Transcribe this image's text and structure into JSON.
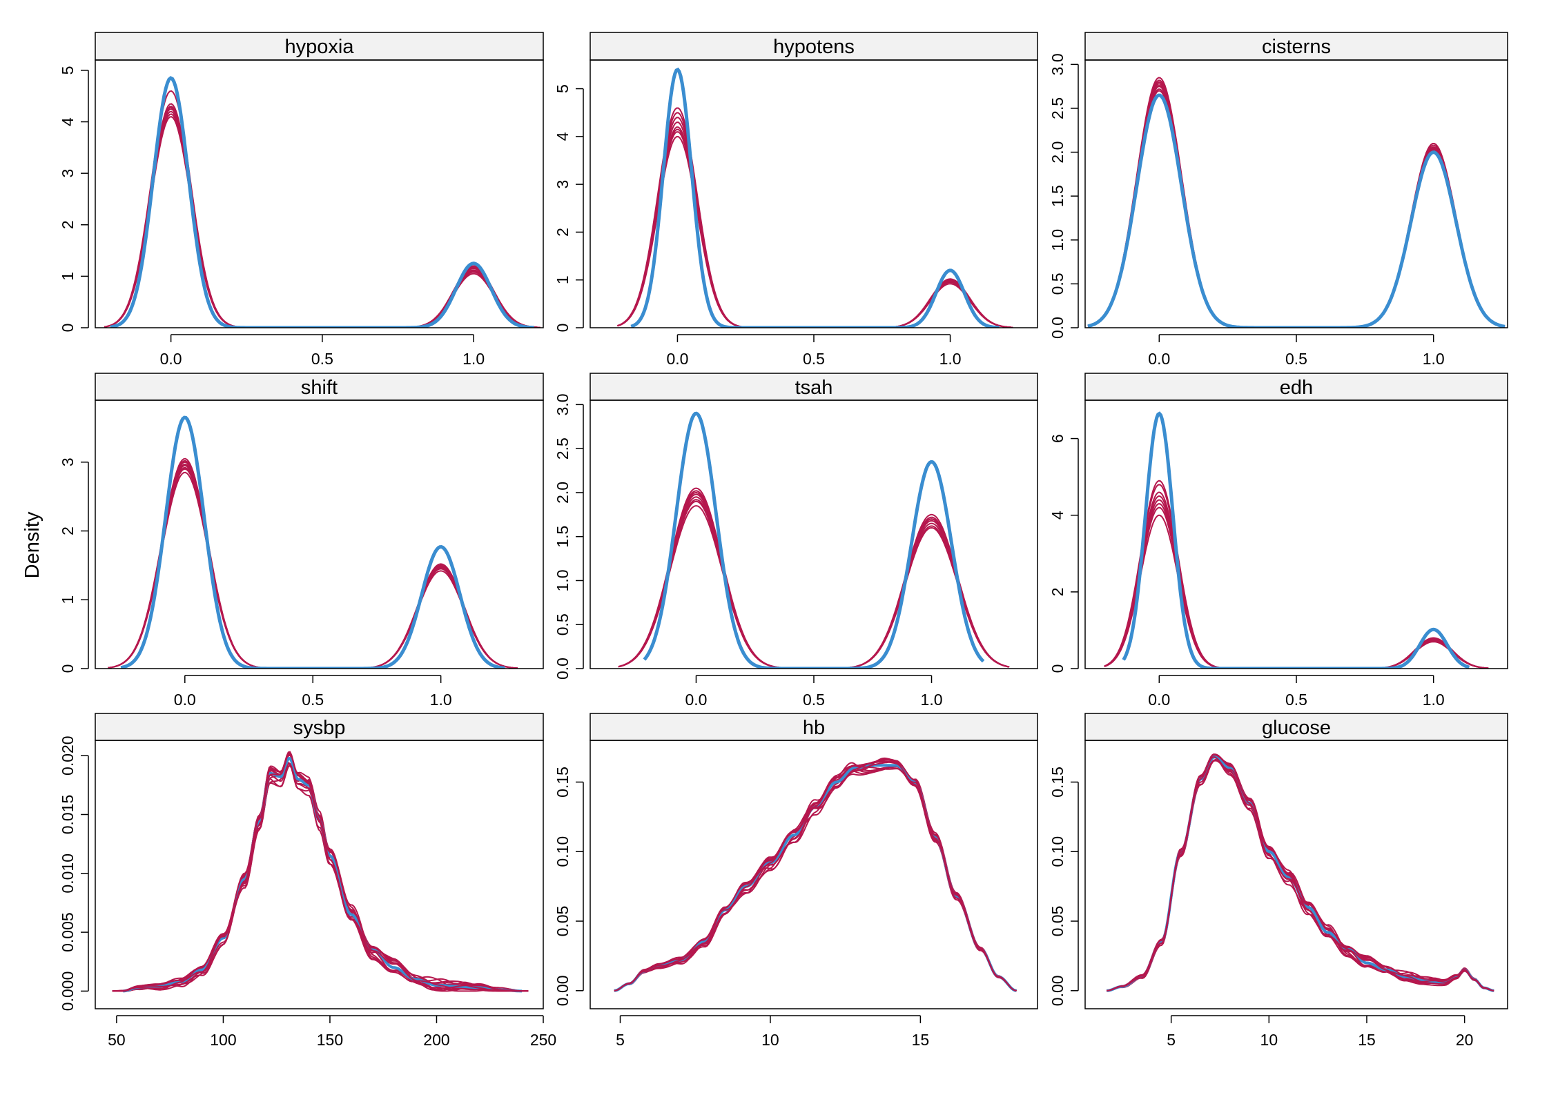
{
  "ylabel": "Density",
  "colors": {
    "observed": "#3a8dd0",
    "imputed": "#b5174d",
    "strip": "#f2f2f2"
  },
  "chart_data": [
    {
      "type": "line",
      "title": "hypoxia",
      "kind": "binary",
      "xlim": [
        -0.25,
        1.23
      ],
      "ylim": [
        0,
        5.2
      ],
      "xticks": [
        {
          "v": 0.0,
          "label": "0.0"
        },
        {
          "v": 0.5,
          "label": "0.5"
        },
        {
          "v": 1.0,
          "label": "1.0"
        }
      ],
      "yticks": [
        {
          "v": 0,
          "label": "0"
        },
        {
          "v": 1,
          "label": "1"
        },
        {
          "v": 2,
          "label": "2"
        },
        {
          "v": 3,
          "label": "3"
        },
        {
          "v": 4,
          "label": "4"
        },
        {
          "v": 5,
          "label": "5"
        }
      ],
      "observed": {
        "p0": 4.85,
        "p1": 1.25,
        "sd": 0.058,
        "range": [
          -0.2,
          1.2
        ]
      },
      "imputed": {
        "p0": [
          4.1,
          4.2,
          4.25,
          4.3,
          4.35,
          4.6,
          4.15,
          4.28
        ],
        "p1": [
          1.05,
          1.1,
          1.15,
          1.2,
          1.18,
          1.08,
          1.12,
          1.16
        ],
        "sd": 0.066,
        "range": [
          -0.22,
          1.22
        ]
      }
    },
    {
      "type": "line",
      "title": "hypotens",
      "kind": "binary",
      "xlim": [
        -0.32,
        1.32
      ],
      "ylim": [
        0,
        5.6
      ],
      "xticks": [
        {
          "v": 0.0,
          "label": "0.0"
        },
        {
          "v": 0.5,
          "label": "0.5"
        },
        {
          "v": 1.0,
          "label": "1.0"
        }
      ],
      "yticks": [
        {
          "v": 0,
          "label": "0"
        },
        {
          "v": 1,
          "label": "1"
        },
        {
          "v": 2,
          "label": "2"
        },
        {
          "v": 3,
          "label": "3"
        },
        {
          "v": 4,
          "label": "4"
        },
        {
          "v": 5,
          "label": "5"
        }
      ],
      "observed": {
        "p0": 5.4,
        "p1": 1.2,
        "sd": 0.052,
        "range": [
          -0.17,
          1.18
        ]
      },
      "imputed": {
        "p0": [
          4.0,
          4.1,
          4.2,
          4.3,
          4.4,
          4.5,
          4.6,
          4.15
        ],
        "p1": [
          0.92,
          0.95,
          0.98,
          1.0,
          1.02,
          0.96,
          0.99,
          1.01
        ],
        "sd": 0.072,
        "range": [
          -0.22,
          1.23
        ]
      }
    },
    {
      "type": "line",
      "title": "cisterns",
      "kind": "binary",
      "xlim": [
        -0.27,
        1.27
      ],
      "ylim": [
        0,
        3.05
      ],
      "xticks": [
        {
          "v": 0.0,
          "label": "0.0"
        },
        {
          "v": 0.5,
          "label": "0.5"
        },
        {
          "v": 1.0,
          "label": "1.0"
        }
      ],
      "yticks": [
        {
          "v": 0,
          "label": "0.0"
        },
        {
          "v": 0.5,
          "label": "0.5"
        },
        {
          "v": 1.0,
          "label": "1.0"
        },
        {
          "v": 1.5,
          "label": "1.5"
        },
        {
          "v": 2.0,
          "label": "2.0"
        },
        {
          "v": 2.5,
          "label": "2.5"
        },
        {
          "v": 3.0,
          "label": "3.0"
        }
      ],
      "observed": {
        "p0": 2.65,
        "p1": 2.0,
        "sd": 0.082,
        "range": [
          -0.26,
          1.26
        ]
      },
      "imputed": {
        "p0": [
          2.7,
          2.75,
          2.78,
          2.8,
          2.85,
          2.72,
          2.76,
          2.82
        ],
        "p1": [
          2.0,
          2.02,
          2.05,
          2.08,
          2.1,
          2.03,
          2.06,
          2.04
        ],
        "sd": 0.082,
        "range": [
          -0.26,
          1.26
        ]
      }
    },
    {
      "type": "line",
      "title": "shift",
      "kind": "binary",
      "xlim": [
        -0.35,
        1.4
      ],
      "ylim": [
        0,
        3.9
      ],
      "xticks": [
        {
          "v": 0.0,
          "label": "0.0"
        },
        {
          "v": 0.5,
          "label": "0.5"
        },
        {
          "v": 1.0,
          "label": "1.0"
        }
      ],
      "yticks": [
        {
          "v": 0,
          "label": "0"
        },
        {
          "v": 1,
          "label": "1"
        },
        {
          "v": 2,
          "label": "2"
        },
        {
          "v": 3,
          "label": "3"
        }
      ],
      "observed": {
        "p0": 3.65,
        "p1": 1.77,
        "sd": 0.075,
        "range": [
          -0.25,
          1.25
        ]
      },
      "imputed": {
        "p0": [
          2.85,
          2.9,
          2.95,
          3.0,
          3.05,
          2.92,
          2.97,
          3.02
        ],
        "p1": [
          1.42,
          1.45,
          1.48,
          1.5,
          1.52,
          1.46,
          1.49,
          1.47
        ],
        "sd": 0.09,
        "range": [
          -0.3,
          1.3
        ]
      }
    },
    {
      "type": "line",
      "title": "tsah",
      "kind": "binary",
      "xlim": [
        -0.45,
        1.45
      ],
      "ylim": [
        0,
        3.05
      ],
      "xticks": [
        {
          "v": 0.0,
          "label": "0.0"
        },
        {
          "v": 0.5,
          "label": "0.5"
        },
        {
          "v": 1.0,
          "label": "1.0"
        }
      ],
      "yticks": [
        {
          "v": 0,
          "label": "0.0"
        },
        {
          "v": 0.5,
          "label": "0.5"
        },
        {
          "v": 1.0,
          "label": "1.0"
        },
        {
          "v": 1.5,
          "label": "1.5"
        },
        {
          "v": 2.0,
          "label": "2.0"
        },
        {
          "v": 2.5,
          "label": "2.5"
        },
        {
          "v": 3.0,
          "label": "3.0"
        }
      ],
      "observed": {
        "p0": 2.9,
        "p1": 2.35,
        "sd": 0.085,
        "range": [
          -0.22,
          1.22
        ]
      },
      "imputed": {
        "p0": [
          1.85,
          1.9,
          1.95,
          2.0,
          2.05,
          1.92,
          1.98,
          2.02
        ],
        "p1": [
          1.6,
          1.65,
          1.7,
          1.72,
          1.75,
          1.68,
          1.62,
          1.7
        ],
        "sd": 0.11,
        "range": [
          -0.33,
          1.33
        ]
      }
    },
    {
      "type": "line",
      "title": "edh",
      "kind": "binary",
      "xlim": [
        -0.27,
        1.27
      ],
      "ylim": [
        0,
        7.0
      ],
      "xticks": [
        {
          "v": 0.0,
          "label": "0.0"
        },
        {
          "v": 0.5,
          "label": "0.5"
        },
        {
          "v": 1.0,
          "label": "1.0"
        }
      ],
      "yticks": [
        {
          "v": 0,
          "label": "0"
        },
        {
          "v": 2,
          "label": "2"
        },
        {
          "v": 4,
          "label": "4"
        },
        {
          "v": 6,
          "label": "6"
        }
      ],
      "observed": {
        "p0": 6.65,
        "p1": 1.02,
        "sd": 0.05,
        "range": [
          -0.13,
          1.13
        ]
      },
      "imputed": {
        "p0": [
          4.0,
          4.2,
          4.4,
          4.6,
          4.8,
          4.9,
          4.3,
          4.5
        ],
        "p1": [
          0.7,
          0.72,
          0.75,
          0.78,
          0.8,
          0.74,
          0.76,
          0.73
        ],
        "sd": 0.068,
        "range": [
          -0.2,
          1.2
        ]
      }
    },
    {
      "type": "line",
      "title": "sysbp",
      "kind": "continuous",
      "xlim": [
        40,
        250
      ],
      "ylim": [
        -0.0015,
        0.0213
      ],
      "xticks": [
        {
          "v": 50,
          "label": "50"
        },
        {
          "v": 100,
          "label": "100"
        },
        {
          "v": 150,
          "label": "150"
        },
        {
          "v": 200,
          "label": "200"
        },
        {
          "v": 250,
          "label": "250"
        }
      ],
      "yticks": [
        {
          "v": 0.0,
          "label": "0.000"
        },
        {
          "v": 0.005,
          "label": "0.005"
        },
        {
          "v": 0.01,
          "label": "0.010"
        },
        {
          "v": 0.015,
          "label": "0.015"
        },
        {
          "v": 0.02,
          "label": "0.020"
        }
      ],
      "observed": {
        "x": [
          53,
          60,
          70,
          80,
          90,
          100,
          110,
          117,
          122,
          127,
          131,
          135,
          140,
          145,
          150,
          160,
          170,
          180,
          190,
          200,
          210,
          220,
          230,
          240
        ],
        "y": [
          0.0,
          0.0003,
          0.0004,
          0.0008,
          0.0018,
          0.0045,
          0.0095,
          0.0145,
          0.0185,
          0.0182,
          0.0198,
          0.018,
          0.0175,
          0.0145,
          0.0115,
          0.0065,
          0.0035,
          0.002,
          0.001,
          0.0005,
          0.0004,
          0.0003,
          0.0001,
          0.0
        ]
      },
      "imputed": {
        "count": 9,
        "amp": 0.0006,
        "min": 48,
        "max": 243
      },
      "x_range": [
        48,
        243
      ]
    },
    {
      "type": "line",
      "title": "hb",
      "kind": "continuous",
      "xlim": [
        4.0,
        18.9
      ],
      "ylim": [
        -0.013,
        0.18
      ],
      "xticks": [
        {
          "v": 5,
          "label": "5"
        },
        {
          "v": 10,
          "label": "10"
        },
        {
          "v": 15,
          "label": "15"
        }
      ],
      "yticks": [
        {
          "v": 0.0,
          "label": "0.00"
        },
        {
          "v": 0.05,
          "label": "0.05"
        },
        {
          "v": 0.1,
          "label": "0.10"
        },
        {
          "v": 0.15,
          "label": "0.15"
        }
      ],
      "observed": {
        "x": [
          4.8,
          5.3,
          5.8,
          6.3,
          7.0,
          7.8,
          8.5,
          9.2,
          10.0,
          10.8,
          11.5,
          12.2,
          12.8,
          13.5,
          14.2,
          14.8,
          15.5,
          16.2,
          17.0,
          17.6,
          18.2
        ],
        "y": [
          0.0,
          0.005,
          0.014,
          0.018,
          0.022,
          0.035,
          0.058,
          0.075,
          0.092,
          0.112,
          0.132,
          0.15,
          0.16,
          0.162,
          0.162,
          0.15,
          0.11,
          0.068,
          0.03,
          0.01,
          0.0
        ]
      },
      "imputed": {
        "count": 9,
        "amp": 0.004,
        "min": 4.8,
        "max": 18.2
      },
      "x_range": [
        4.8,
        18.2
      ]
    },
    {
      "type": "line",
      "title": "glucose",
      "kind": "continuous",
      "xlim": [
        0.6,
        22.2
      ],
      "ylim": [
        -0.013,
        0.18
      ],
      "xticks": [
        {
          "v": 5,
          "label": "5"
        },
        {
          "v": 10,
          "label": "10"
        },
        {
          "v": 15,
          "label": "15"
        },
        {
          "v": 20,
          "label": "20"
        }
      ],
      "yticks": [
        {
          "v": 0.0,
          "label": "0.00"
        },
        {
          "v": 0.05,
          "label": "0.05"
        },
        {
          "v": 0.1,
          "label": "0.10"
        },
        {
          "v": 0.15,
          "label": "0.15"
        }
      ],
      "observed": {
        "x": [
          1.7,
          2.5,
          3.5,
          4.5,
          5.5,
          6.5,
          7.2,
          8.0,
          9.0,
          10.0,
          11.0,
          12.0,
          13.0,
          14.0,
          15.0,
          16.0,
          17.0,
          18.0,
          19.0,
          19.6,
          20.0,
          20.5,
          21.0,
          21.5
        ],
        "y": [
          0.0,
          0.003,
          0.01,
          0.035,
          0.1,
          0.152,
          0.168,
          0.16,
          0.135,
          0.1,
          0.082,
          0.06,
          0.042,
          0.03,
          0.02,
          0.015,
          0.01,
          0.007,
          0.006,
          0.01,
          0.015,
          0.008,
          0.002,
          0.0
        ]
      },
      "imputed": {
        "count": 9,
        "amp": 0.004,
        "min": 1.7,
        "max": 21.5
      },
      "x_range": [
        1.7,
        21.5
      ]
    }
  ]
}
